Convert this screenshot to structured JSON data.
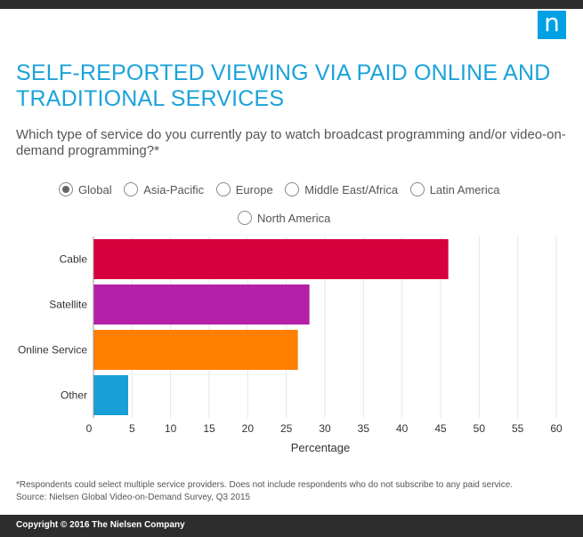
{
  "header": {
    "logo_letter": "n"
  },
  "title": "SELF-REPORTED VIEWING VIA PAID ONLINE AND TRADITIONAL SERVICES",
  "question": "Which type of service do you currently pay to watch broadcast programming and/or video-on-demand programming?*",
  "regions": {
    "selected": "Global",
    "options": [
      "Global",
      "Asia-Pacific",
      "Europe",
      "Middle East/Africa",
      "Latin America",
      "North America"
    ]
  },
  "chart_data": {
    "type": "bar",
    "orientation": "horizontal",
    "categories": [
      "Cable",
      "Satellite",
      "Online Service",
      "Other"
    ],
    "values": [
      46,
      28,
      26.5,
      4.5
    ],
    "colors": [
      "#d5003c",
      "#b420a8",
      "#ff7f00",
      "#1a9ed8"
    ],
    "xlabel": "Percentage",
    "xlim": [
      0,
      60
    ],
    "xticks": [
      0,
      5,
      10,
      15,
      20,
      25,
      30,
      35,
      40,
      45,
      50,
      55,
      60
    ],
    "grid": true
  },
  "footnote": {
    "note": "*Respondents could select multiple service providers. Does not include respondents who do not subscribe to any paid service.",
    "source": "Source: Nielsen Global Video-on-Demand Survey, Q3 2015"
  },
  "footer": {
    "copyright": "Copyright © 2016 The Nielsen Company"
  }
}
